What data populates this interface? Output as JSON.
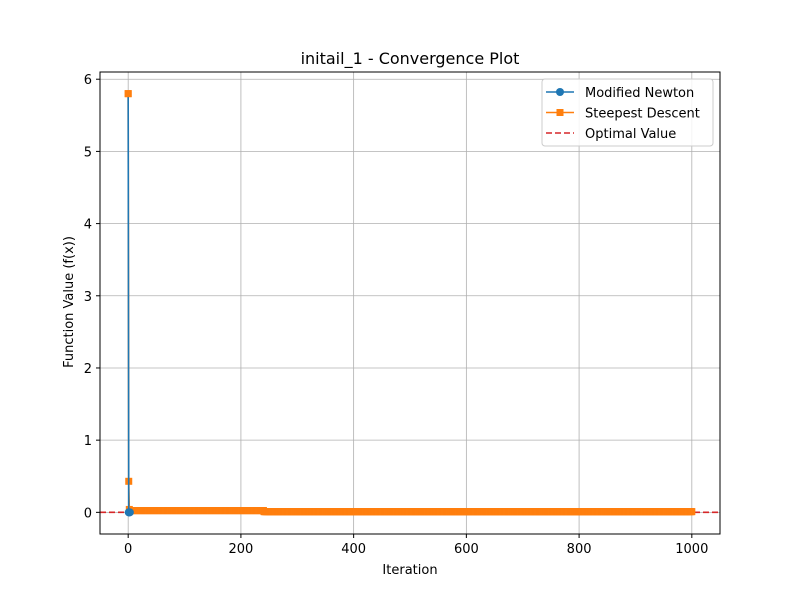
{
  "chart_data": {
    "type": "line",
    "title": "initail_1 - Convergence Plot",
    "xlabel": "Iteration",
    "ylabel": "Function Value (f(x))",
    "xlim": [
      -50,
      1050
    ],
    "ylim": [
      -0.3,
      6.1
    ],
    "xticks": [
      0,
      200,
      400,
      600,
      800,
      1000
    ],
    "yticks": [
      0,
      1,
      2,
      3,
      4,
      5,
      6
    ],
    "grid": true,
    "legend_position": "top-right",
    "series": [
      {
        "name": "Modified Newton",
        "color": "#1f77b4",
        "marker": "circle",
        "points": [
          [
            0,
            5.8
          ],
          [
            1,
            0.0
          ],
          [
            2,
            0.0
          ],
          [
            3,
            0.0
          ]
        ]
      },
      {
        "name": "Steepest Descent",
        "color": "#ff7f0e",
        "marker": "square",
        "iterations": 1000,
        "initial_values": [
          5.8,
          0.43,
          0.04
        ],
        "plateau_1": {
          "value": 0.025,
          "until": 240
        },
        "plateau_2": {
          "value": 0.01,
          "until": 1000
        }
      }
    ],
    "reference_line": {
      "name": "Optimal Value",
      "value": 0.0,
      "color": "#d62728",
      "style": "dashed"
    }
  }
}
